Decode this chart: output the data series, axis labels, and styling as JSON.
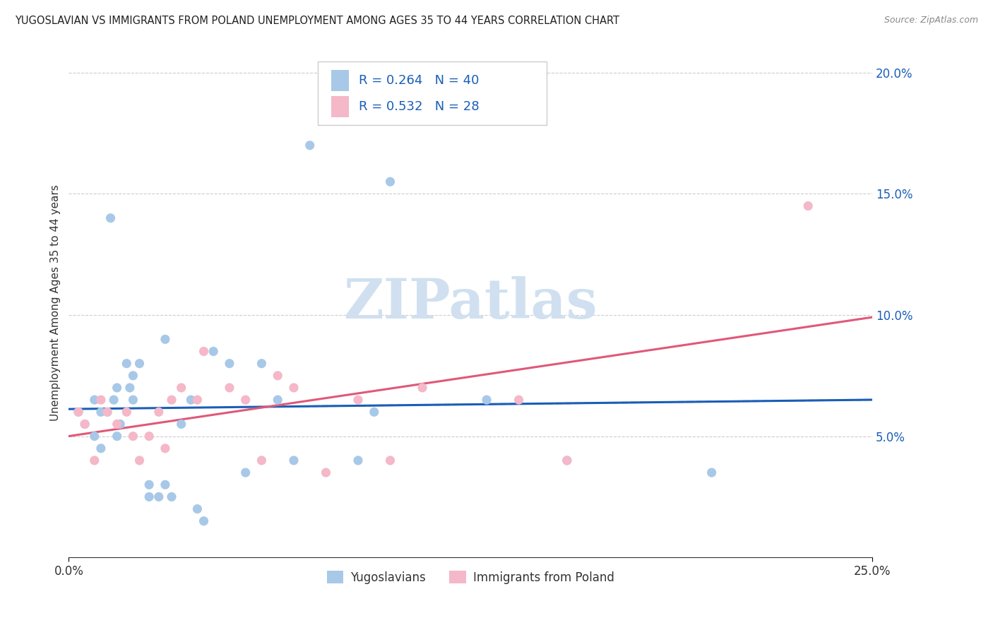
{
  "title": "YUGOSLAVIAN VS IMMIGRANTS FROM POLAND UNEMPLOYMENT AMONG AGES 35 TO 44 YEARS CORRELATION CHART",
  "source": "Source: ZipAtlas.com",
  "ylabel": "Unemployment Among Ages 35 to 44 years",
  "xlim": [
    0,
    0.25
  ],
  "ylim": [
    0,
    0.21
  ],
  "yticks": [
    0.05,
    0.1,
    0.15,
    0.2
  ],
  "ytick_labels": [
    "5.0%",
    "10.0%",
    "15.0%",
    "20.0%"
  ],
  "yug_color": "#a8c8e8",
  "pol_color": "#f4b8c8",
  "yug_line_color": "#1a5eb8",
  "pol_line_color": "#e05878",
  "yug_R": 0.264,
  "yug_N": 40,
  "pol_R": 0.532,
  "pol_N": 28,
  "background": "#ffffff",
  "watermark": "ZIPatlas",
  "watermark_color": "#d0e0f0",
  "grid_color": "#cccccc",
  "legend_label_yug": "Yugoslavians",
  "legend_label_pol": "Immigrants from Poland",
  "legend_text_color": "#1a5eb8",
  "yug_scatter_x": [
    0.003,
    0.005,
    0.008,
    0.008,
    0.01,
    0.01,
    0.012,
    0.013,
    0.014,
    0.015,
    0.015,
    0.016,
    0.018,
    0.019,
    0.02,
    0.02,
    0.022,
    0.025,
    0.025,
    0.028,
    0.03,
    0.03,
    0.032,
    0.035,
    0.038,
    0.04,
    0.042,
    0.045,
    0.05,
    0.055,
    0.06,
    0.065,
    0.07,
    0.075,
    0.09,
    0.095,
    0.1,
    0.13,
    0.155,
    0.2
  ],
  "yug_scatter_y": [
    0.06,
    0.055,
    0.05,
    0.065,
    0.045,
    0.06,
    0.06,
    0.14,
    0.065,
    0.05,
    0.07,
    0.055,
    0.08,
    0.07,
    0.065,
    0.075,
    0.08,
    0.025,
    0.03,
    0.025,
    0.03,
    0.09,
    0.025,
    0.055,
    0.065,
    0.02,
    0.015,
    0.085,
    0.08,
    0.035,
    0.08,
    0.065,
    0.04,
    0.17,
    0.04,
    0.06,
    0.155,
    0.065,
    0.04,
    0.035
  ],
  "pol_scatter_x": [
    0.003,
    0.005,
    0.008,
    0.01,
    0.012,
    0.015,
    0.018,
    0.02,
    0.022,
    0.025,
    0.028,
    0.03,
    0.032,
    0.035,
    0.04,
    0.042,
    0.05,
    0.055,
    0.06,
    0.065,
    0.07,
    0.08,
    0.09,
    0.1,
    0.11,
    0.14,
    0.155,
    0.23
  ],
  "pol_scatter_y": [
    0.06,
    0.055,
    0.04,
    0.065,
    0.06,
    0.055,
    0.06,
    0.05,
    0.04,
    0.05,
    0.06,
    0.045,
    0.065,
    0.07,
    0.065,
    0.085,
    0.07,
    0.065,
    0.04,
    0.075,
    0.07,
    0.035,
    0.065,
    0.04,
    0.07,
    0.065,
    0.04,
    0.145
  ],
  "dashed_line_start_x": 0.07,
  "dashed_line_end_x": 0.25
}
